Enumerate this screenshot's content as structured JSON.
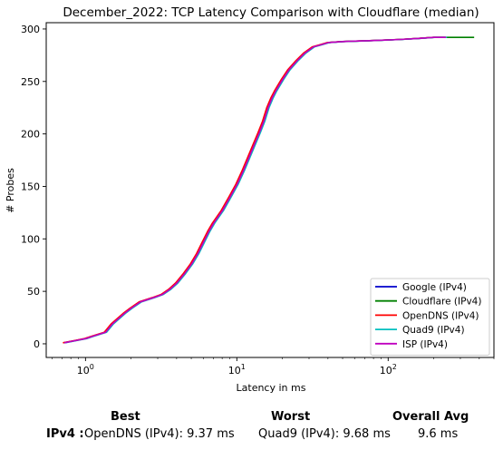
{
  "chart_data": {
    "type": "line",
    "title": "December_2022: TCP Latency Comparison with Cloudflare (median)",
    "xlabel": "Latency in ms",
    "ylabel": "# Probes",
    "xscale": "log",
    "xlim": [
      0.55,
      500
    ],
    "ylim": [
      -13,
      306
    ],
    "x_ticks": [
      {
        "value": 1,
        "base": "10",
        "exp": "0"
      },
      {
        "value": 10,
        "base": "10",
        "exp": "1"
      },
      {
        "value": 100,
        "base": "10",
        "exp": "2"
      }
    ],
    "y_ticks": [
      0,
      50,
      100,
      150,
      200,
      250,
      300
    ],
    "legend_position": "lower-right",
    "series": [
      {
        "name": "Google (IPv4)",
        "color": "#0000cc",
        "shift": 1.0,
        "x": [
          0.72,
          0.85,
          1.0,
          1.1,
          1.35,
          1.5,
          1.8,
          2.0,
          2.3,
          2.8,
          3.2,
          3.6,
          4.0,
          4.5,
          5.0,
          5.5,
          6.0,
          6.5,
          7.0,
          8.0,
          9.0,
          10.0,
          11.0,
          12.0,
          13.0,
          14.0,
          15.0,
          16.0,
          17.0,
          18.0,
          20.0,
          22.0,
          25.0,
          28.0,
          32.0,
          36.0,
          40.0,
          50.0,
          80.0,
          120.0,
          160.0,
          200.0,
          240.0
        ],
        "y": [
          1,
          3,
          5,
          7,
          11,
          19,
          29,
          34,
          40,
          44,
          47,
          52,
          58,
          67,
          76,
          86,
          97,
          107,
          115,
          127,
          140,
          152,
          165,
          178,
          190,
          201,
          212,
          225,
          234,
          241,
          252,
          261,
          270,
          277,
          283,
          285,
          287,
          288,
          289,
          290,
          291,
          292,
          292
        ]
      },
      {
        "name": "Cloudflare (IPv4)",
        "color": "#008000",
        "shift": 1.0,
        "x": [
          0.72,
          0.85,
          1.0,
          1.1,
          1.35,
          1.5,
          1.8,
          2.0,
          2.3,
          2.8,
          3.2,
          3.6,
          4.0,
          4.5,
          5.0,
          5.5,
          6.0,
          6.5,
          7.0,
          8.0,
          9.0,
          10.0,
          11.0,
          12.0,
          13.0,
          14.0,
          15.0,
          16.0,
          17.0,
          18.0,
          20.0,
          22.0,
          25.0,
          28.0,
          32.0,
          36.0,
          40.0,
          50.0,
          80.0,
          120.0,
          160.0,
          200.0,
          240.0,
          300.0,
          370.0
        ],
        "y": [
          1,
          3,
          5,
          7,
          11,
          19,
          29,
          34,
          40,
          44,
          47,
          52,
          58,
          67,
          76,
          86,
          97,
          107,
          115,
          127,
          140,
          152,
          165,
          178,
          190,
          201,
          212,
          225,
          234,
          241,
          252,
          261,
          270,
          277,
          283,
          285,
          287,
          288,
          289,
          290,
          291,
          292,
          292,
          292,
          292
        ]
      },
      {
        "name": "OpenDNS (IPv4)",
        "color": "#ff0000",
        "shift": 0.985,
        "x": [
          0.72,
          0.85,
          1.0,
          1.1,
          1.35,
          1.5,
          1.8,
          2.0,
          2.3,
          2.8,
          3.2,
          3.6,
          4.0,
          4.5,
          5.0,
          5.5,
          6.0,
          6.5,
          7.0,
          8.0,
          9.0,
          10.0,
          11.0,
          12.0,
          13.0,
          14.0,
          15.0,
          16.0,
          17.0,
          18.0,
          20.0,
          22.0,
          25.0,
          28.0,
          32.0,
          36.0,
          40.0,
          50.0,
          80.0,
          120.0,
          160.0,
          200.0,
          240.0
        ],
        "y": [
          1,
          3,
          5,
          7,
          11,
          19,
          29,
          34,
          40,
          44,
          47,
          52,
          58,
          67,
          76,
          86,
          97,
          107,
          115,
          127,
          140,
          152,
          165,
          178,
          190,
          201,
          212,
          225,
          234,
          241,
          252,
          261,
          270,
          277,
          283,
          285,
          287,
          288,
          289,
          290,
          291,
          292,
          292
        ]
      },
      {
        "name": "Quad9 (IPv4)",
        "color": "#00bfbf",
        "shift": 1.02,
        "x": [
          0.72,
          0.85,
          1.0,
          1.1,
          1.35,
          1.5,
          1.8,
          2.0,
          2.3,
          2.8,
          3.2,
          3.6,
          4.0,
          4.5,
          5.0,
          5.5,
          6.0,
          6.5,
          7.0,
          8.0,
          9.0,
          10.0,
          11.0,
          12.0,
          13.0,
          14.0,
          15.0,
          16.0,
          17.0,
          18.0,
          20.0,
          22.0,
          25.0,
          28.0,
          32.0,
          36.0,
          40.0,
          50.0,
          80.0,
          120.0,
          160.0,
          200.0,
          240.0
        ],
        "y": [
          1,
          3,
          5,
          7,
          11,
          19,
          29,
          34,
          40,
          44,
          47,
          52,
          58,
          67,
          76,
          86,
          97,
          107,
          115,
          127,
          140,
          152,
          165,
          178,
          190,
          201,
          212,
          225,
          234,
          241,
          252,
          261,
          270,
          277,
          283,
          285,
          287,
          288,
          289,
          290,
          291,
          292,
          292
        ]
      },
      {
        "name": "ISP (IPv4)",
        "color": "#bf00bf",
        "shift": 1.005,
        "x": [
          0.72,
          0.85,
          1.0,
          1.1,
          1.35,
          1.5,
          1.8,
          2.0,
          2.3,
          2.8,
          3.2,
          3.6,
          4.0,
          4.5,
          5.0,
          5.5,
          6.0,
          6.5,
          7.0,
          8.0,
          9.0,
          10.0,
          11.0,
          12.0,
          13.0,
          14.0,
          15.0,
          16.0,
          17.0,
          18.0,
          20.0,
          22.0,
          25.0,
          28.0,
          32.0,
          36.0,
          40.0,
          50.0,
          80.0,
          120.0,
          160.0,
          200.0,
          240.0
        ],
        "y": [
          1,
          3,
          5,
          7,
          11,
          19,
          29,
          34,
          40,
          44,
          47,
          52,
          58,
          67,
          76,
          86,
          97,
          107,
          115,
          127,
          140,
          152,
          165,
          178,
          190,
          201,
          212,
          225,
          234,
          241,
          252,
          261,
          270,
          277,
          283,
          285,
          287,
          288,
          289,
          290,
          291,
          292,
          292
        ]
      }
    ]
  },
  "summary": {
    "best_header": "Best",
    "worst_header": "Worst",
    "avg_header": "Overall Avg",
    "row_label": "IPv4 :",
    "best_value": "OpenDNS (IPv4): 9.37 ms",
    "worst_value": "Quad9 (IPv4): 9.68 ms",
    "avg_value": "9.6 ms"
  }
}
